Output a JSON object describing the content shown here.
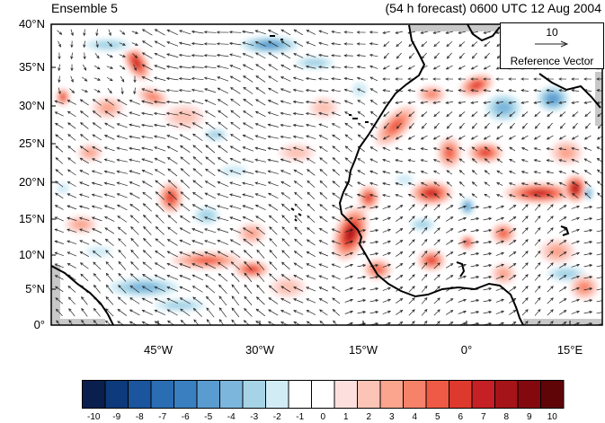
{
  "title_left": "Ensemble 5",
  "title_right": "(54 h forecast) 0600 UTC 12 Aug 2004",
  "lat_labels": [
    "40°N",
    "35°N",
    "30°N",
    "25°N",
    "20°N",
    "15°N",
    "10°N",
    "5°N",
    "0°"
  ],
  "lon_labels": [
    "45°W",
    "30°W",
    "15°W",
    "0°",
    "15°E"
  ],
  "reference_vector": {
    "magnitude": "10",
    "label": "Reference Vector"
  },
  "colorbar": {
    "labels": [
      "-10",
      "-9",
      "-8",
      "-7",
      "-6",
      "-5",
      "-4",
      "-3",
      "-2",
      "-1",
      "0",
      "1",
      "2",
      "3",
      "4",
      "5",
      "6",
      "7",
      "8",
      "9",
      "10"
    ],
    "colors": [
      "#0a1f4d",
      "#0d3a7a",
      "#1a559e",
      "#2b6db3",
      "#3a7fbf",
      "#5a9ccf",
      "#7db6dc",
      "#a6d4e6",
      "#d2ecf6",
      "#ffffff",
      "#ffffff",
      "#fde0de",
      "#fcc4b6",
      "#fba48e",
      "#f6826a",
      "#ee5a45",
      "#dd3a2d",
      "#c52025",
      "#a51419",
      "#84090f",
      "#5f0508"
    ]
  },
  "colors": {
    "land_outline": "#000000",
    "missing": "#c8c8c8",
    "vector": "#222222"
  }
}
